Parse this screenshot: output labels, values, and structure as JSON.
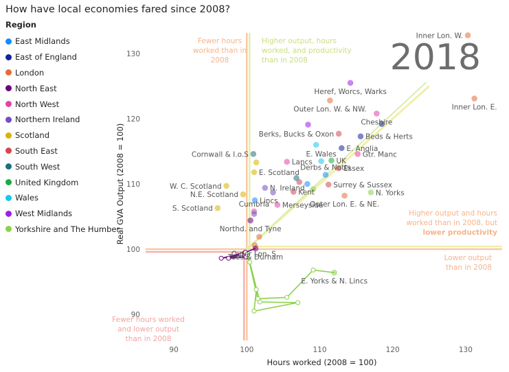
{
  "title": "How have local economies fared since 2008?",
  "legend": {
    "title": "Region",
    "items": [
      {
        "label": "East Midlands",
        "color": "#118DFF"
      },
      {
        "label": "East of England",
        "color": "#12239E"
      },
      {
        "label": "London",
        "color": "#E66C37"
      },
      {
        "label": "North East",
        "color": "#6B007B"
      },
      {
        "label": "North West",
        "color": "#E044A7"
      },
      {
        "label": "Northern Ireland",
        "color": "#744EC2"
      },
      {
        "label": "Scotland",
        "color": "#D9B300"
      },
      {
        "label": "South East",
        "color": "#D64550"
      },
      {
        "label": "South West",
        "color": "#197278"
      },
      {
        "label": "United Kingdom",
        "color": "#1AAB40"
      },
      {
        "label": "Wales",
        "color": "#15C6F4"
      },
      {
        "label": "West Midlands",
        "color": "#9B1FE8"
      },
      {
        "label": "Yorkshire and The Humber",
        "color": "#8AD14A"
      }
    ]
  },
  "chart_data": {
    "type": "scatter",
    "year_label": "2018",
    "xlabel": "Hours worked (2008 = 100)",
    "ylabel": "Real GVA Output (2008 = 100)",
    "xlim": [
      85,
      135
    ],
    "ylim": [
      86,
      134
    ],
    "xticks": [
      90,
      100,
      110,
      120,
      130
    ],
    "yticks": [
      90,
      100,
      110,
      120,
      130
    ],
    "reference": {
      "x": 100,
      "y": 100
    },
    "quadrant_notes": [
      {
        "id": "fewer-hours-higher-output",
        "lines": [
          "Fewer hours",
          "worked than in",
          "2008"
        ],
        "color": "#F7B38A"
      },
      {
        "id": "higher-output-hours-productivity",
        "lines": [
          "Higher output, hours",
          "worked, and productivity",
          "than in 2008"
        ],
        "color": "#C9DE7D"
      },
      {
        "id": "higher-output-lower-productivity",
        "lines": [
          "Higher output and hours",
          "worked than in 2008, but",
          "lower productivity"
        ],
        "color": "#F7B38A"
      },
      {
        "id": "lower-output",
        "lines": [
          "Lower output",
          "than in 2008"
        ],
        "color": "#F7B38A"
      },
      {
        "id": "fewer-hours-lower-output",
        "lines": [
          "Fewer hours worked",
          "and lower output",
          "than in 2008"
        ],
        "color": "#F4A3A3"
      }
    ],
    "points": [
      {
        "label": "Inner Lon. W.",
        "region": "London",
        "x": 130.3,
        "y": 132.8,
        "label_pos": "left"
      },
      {
        "label": "Inner Lon. E.",
        "region": "London",
        "x": 131.2,
        "y": 123.1,
        "label_pos": "below"
      },
      {
        "label": "Heref, Worcs, Warks",
        "region": "West Midlands",
        "x": 114.2,
        "y": 125.5,
        "label_pos": "below"
      },
      {
        "label": "Outer Lon. W. & NW.",
        "region": "London",
        "x": 111.4,
        "y": 122.8,
        "label_pos": "below"
      },
      {
        "label": "Cheshire",
        "region": "North West",
        "x": 117.8,
        "y": 120.8,
        "label_pos": "below"
      },
      {
        "label": "",
        "region": "East of England",
        "x": 118.5,
        "y": 119.2,
        "label_pos": "none"
      },
      {
        "label": "Berks, Bucks & Oxon",
        "region": "South East",
        "x": 112.6,
        "y": 117.7,
        "label_pos": "left"
      },
      {
        "label": "",
        "region": "West Midlands",
        "x": 108.4,
        "y": 119.1,
        "label_pos": "none"
      },
      {
        "label": "Beds & Herts",
        "region": "East of England",
        "x": 115.6,
        "y": 117.3,
        "label_pos": "right"
      },
      {
        "label": "E. Anglia",
        "region": "East of England",
        "x": 113.0,
        "y": 115.5,
        "label_pos": "right"
      },
      {
        "label": "",
        "region": "Wales",
        "x": 109.5,
        "y": 116.0,
        "label_pos": "none"
      },
      {
        "label": "Gtr. Manc",
        "region": "North West",
        "x": 115.2,
        "y": 114.6,
        "label_pos": "right"
      },
      {
        "label": "E. Wales",
        "region": "Wales",
        "x": 110.2,
        "y": 113.5,
        "label_pos": "above"
      },
      {
        "label": "UK",
        "region": "United Kingdom",
        "x": 111.6,
        "y": 113.6,
        "label_pos": "right"
      },
      {
        "label": "Essex",
        "region": "South East",
        "x": 112.6,
        "y": 112.4,
        "label_pos": "right"
      },
      {
        "label": "Cornwall & I.o.S",
        "region": "South West",
        "x": 100.9,
        "y": 114.6,
        "label_pos": "left"
      },
      {
        "label": "",
        "region": "Scotland",
        "x": 101.3,
        "y": 113.3,
        "label_pos": "none"
      },
      {
        "label": "E. Scotland",
        "region": "Scotland",
        "x": 101.0,
        "y": 111.8,
        "label_pos": "right"
      },
      {
        "label": "Lancs",
        "region": "North West",
        "x": 105.5,
        "y": 113.4,
        "label_pos": "right"
      },
      {
        "label": "Derbs & Notts",
        "region": "East Midlands",
        "x": 110.8,
        "y": 111.4,
        "label_pos": "above"
      },
      {
        "label": "",
        "region": "South West",
        "x": 106.8,
        "y": 110.9,
        "label_pos": "none"
      },
      {
        "label": "",
        "region": "South East",
        "x": 107.2,
        "y": 110.3,
        "label_pos": "none"
      },
      {
        "label": "",
        "region": "East Midlands",
        "x": 108.3,
        "y": 110.0,
        "label_pos": "none"
      },
      {
        "label": "Surrey & Sussex",
        "region": "South East",
        "x": 111.2,
        "y": 109.9,
        "label_pos": "right"
      },
      {
        "label": "W. C. Scotland",
        "region": "Scotland",
        "x": 97.2,
        "y": 109.7,
        "label_pos": "left"
      },
      {
        "label": "N. Ireland",
        "region": "Northern Ireland",
        "x": 102.5,
        "y": 109.4,
        "label_pos": "right"
      },
      {
        "label": "",
        "region": "Northern Ireland",
        "x": 103.6,
        "y": 108.7,
        "label_pos": "none"
      },
      {
        "label": "Kent",
        "region": "South East",
        "x": 106.4,
        "y": 108.8,
        "label_pos": "right"
      },
      {
        "label": "",
        "region": "Yorkshire and The Humber",
        "x": 109.1,
        "y": 109.2,
        "label_pos": "none"
      },
      {
        "label": "N. Yorks",
        "region": "Yorkshire and The Humber",
        "x": 117.0,
        "y": 108.7,
        "label_pos": "right"
      },
      {
        "label": "N.E. Scotland",
        "region": "Scotland",
        "x": 99.5,
        "y": 108.4,
        "label_pos": "left"
      },
      {
        "label": "Lincs",
        "region": "East Midlands",
        "x": 101.1,
        "y": 107.5,
        "label_pos": "right"
      },
      {
        "label": "Merseyside",
        "region": "North West",
        "x": 104.2,
        "y": 106.8,
        "label_pos": "right"
      },
      {
        "label": "Outer Lon. E. & NE.",
        "region": "London",
        "x": 113.4,
        "y": 108.2,
        "label_pos": "below"
      },
      {
        "label": "S. Scotland",
        "region": "Scotland",
        "x": 96.0,
        "y": 106.3,
        "label_pos": "left"
      },
      {
        "label": "Cumbria",
        "region": "North West",
        "x": 101.0,
        "y": 105.8,
        "label_pos": "above"
      },
      {
        "label": "",
        "region": "Northern Ireland",
        "x": 101.0,
        "y": 105.4,
        "label_pos": "none"
      },
      {
        "label": "Northd. and Tyne",
        "region": "North East",
        "x": 100.5,
        "y": 104.4,
        "label_pos": "below"
      },
      {
        "label": "",
        "region": "London",
        "x": 101.7,
        "y": 101.9,
        "label_pos": "none"
      },
      {
        "label": "Outer Lon. S.",
        "region": "London",
        "x": 101.1,
        "y": 100.6,
        "label_pos": "below"
      },
      {
        "label": "Tees & Durham",
        "region": "North East",
        "x": 101.2,
        "y": 100.1,
        "label_pos": "below"
      },
      {
        "label": "E. Yorks & N. Lincs",
        "region": "Yorkshire and The Humber",
        "x": 112.0,
        "y": 96.4,
        "label_pos": "below"
      }
    ],
    "trails": [
      {
        "region": "North East",
        "points": [
          [
            101.2,
            100.1
          ],
          [
            99.8,
            99.5
          ],
          [
            96.5,
            98.6
          ],
          [
            99.2,
            99.1
          ],
          [
            97.5,
            98.6
          ],
          [
            99.9,
            98.8
          ]
        ]
      },
      {
        "region": "Yorkshire and The Humber",
        "points": [
          [
            112.0,
            96.4
          ],
          [
            109.1,
            96.8
          ],
          [
            105.5,
            92.6
          ],
          [
            101.5,
            92.4
          ],
          [
            100.1,
            99.2
          ],
          [
            101.3,
            93.8
          ],
          [
            101.0,
            90.5
          ],
          [
            107.0,
            91.8
          ],
          [
            101.8,
            91.9
          ],
          [
            100.4,
            98.0
          ]
        ]
      }
    ]
  }
}
